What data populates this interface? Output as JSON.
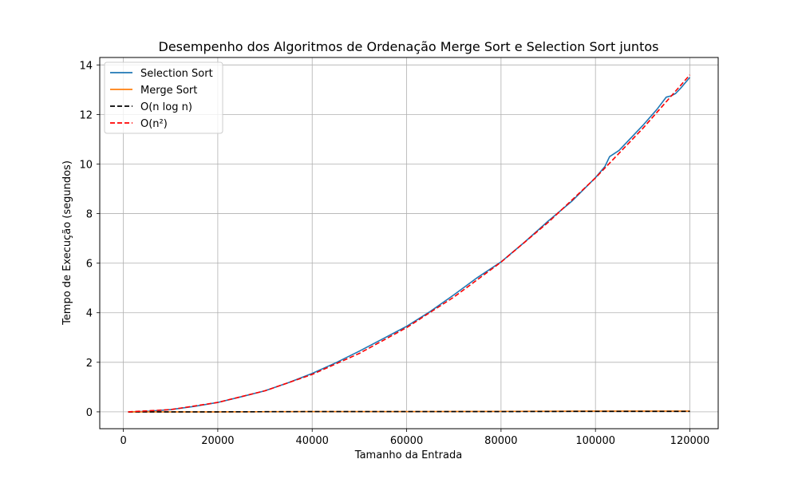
{
  "chart_data": {
    "type": "line",
    "title": "Desempenho dos Algoritmos de Ordenação Merge Sort e Selection Sort juntos",
    "xlabel": "Tamanho da Entrada",
    "ylabel": "Tempo de Execução (segundos)",
    "xlim": [
      -5000,
      126000
    ],
    "ylim": [
      -0.68,
      14.3
    ],
    "xticks": [
      0,
      20000,
      40000,
      60000,
      80000,
      100000,
      120000
    ],
    "xtick_labels": [
      "0",
      "20000",
      "40000",
      "60000",
      "80000",
      "100000",
      "120000"
    ],
    "yticks": [
      0,
      2,
      4,
      6,
      8,
      10,
      12,
      14
    ],
    "ytick_labels": [
      "0",
      "2",
      "4",
      "6",
      "8",
      "10",
      "12",
      "14"
    ],
    "grid": true,
    "legend_position": "top-left",
    "series": [
      {
        "name": "Selection Sort",
        "color": "#1f77b4",
        "dash": "solid",
        "x": [
          1000,
          5000,
          10000,
          15000,
          20000,
          25000,
          30000,
          35000,
          40000,
          45000,
          50000,
          55000,
          60000,
          65000,
          70000,
          75000,
          80000,
          85000,
          90000,
          95000,
          100000,
          102000,
          103000,
          105000,
          110000,
          113000,
          115000,
          116000,
          117000,
          118000,
          120000
        ],
        "y": [
          0.0,
          0.02,
          0.09,
          0.22,
          0.38,
          0.61,
          0.85,
          1.18,
          1.55,
          1.98,
          2.45,
          2.95,
          3.45,
          4.05,
          4.72,
          5.42,
          6.05,
          6.85,
          7.7,
          8.5,
          9.45,
          9.9,
          10.3,
          10.55,
          11.55,
          12.2,
          12.7,
          12.75,
          12.85,
          13.05,
          13.5
        ]
      },
      {
        "name": "Merge Sort",
        "color": "#ff7f0e",
        "dash": "solid",
        "x": [
          1000,
          20000,
          40000,
          60000,
          80000,
          100000,
          120000
        ],
        "y": [
          0.0,
          0.0,
          0.01,
          0.01,
          0.02,
          0.03,
          0.03
        ]
      },
      {
        "name": "O(n log n)",
        "color": "#000000",
        "dash": "dashed",
        "x": [
          1000,
          20000,
          40000,
          60000,
          80000,
          100000,
          120000
        ],
        "y": [
          0.0,
          0.0,
          0.01,
          0.01,
          0.01,
          0.02,
          0.02
        ]
      },
      {
        "name": "O(n²)",
        "color": "#ff0000",
        "dash": "dashed",
        "x": [
          1000,
          10000,
          20000,
          30000,
          40000,
          50000,
          60000,
          70000,
          80000,
          90000,
          100000,
          110000,
          120000
        ],
        "y": [
          0.0,
          0.09,
          0.38,
          0.85,
          1.51,
          2.36,
          3.4,
          4.63,
          6.04,
          7.65,
          9.44,
          11.43,
          13.6
        ]
      }
    ]
  }
}
